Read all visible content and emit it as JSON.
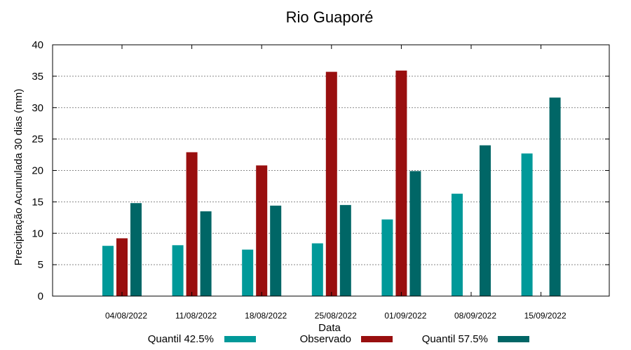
{
  "chart_data": {
    "type": "bar",
    "title": "Rio Guaporé",
    "xlabel": "Data",
    "ylabel": "Precipitação Acumulada 30 dias (mm)",
    "ylim": [
      0,
      40
    ],
    "yticks": [
      0,
      5,
      10,
      15,
      20,
      25,
      30,
      35,
      40
    ],
    "grid": true,
    "legend_position": "bottom",
    "categories": [
      "04/08/2022",
      "11/08/2022",
      "18/08/2022",
      "25/08/2022",
      "01/09/2022",
      "08/09/2022",
      "15/09/2022"
    ],
    "series": [
      {
        "name": "Quantil 42.5%",
        "color": "#009999",
        "values": [
          8.0,
          8.1,
          7.4,
          8.4,
          12.2,
          16.3,
          22.7
        ]
      },
      {
        "name": "Observado",
        "color": "#990f0f",
        "values": [
          9.2,
          22.9,
          20.8,
          35.7,
          35.9,
          null,
          null
        ]
      },
      {
        "name": "Quantil 57.5%",
        "color": "#006666",
        "values": [
          14.8,
          13.5,
          14.4,
          14.5,
          19.9,
          24.0,
          31.6
        ]
      }
    ]
  }
}
